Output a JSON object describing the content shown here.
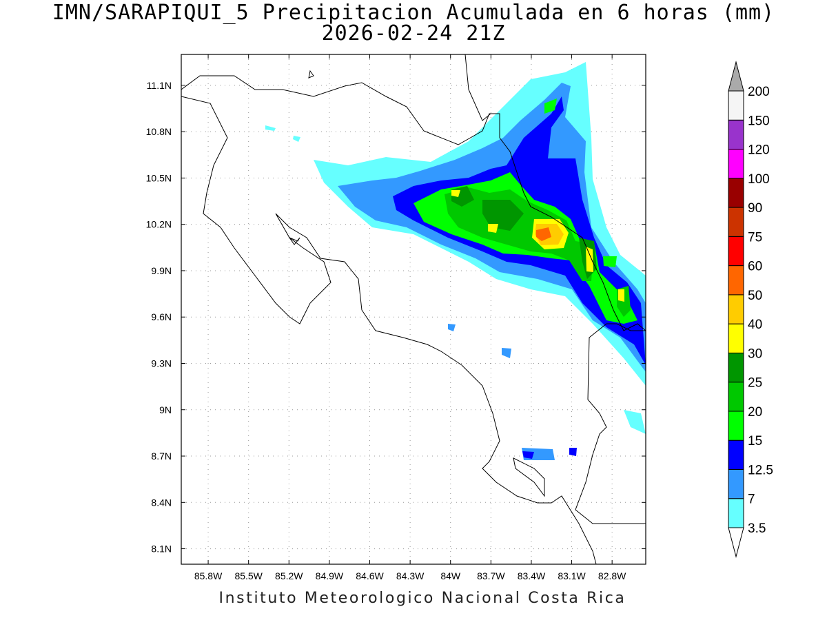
{
  "title": {
    "line1": "IMN/SARAPIQUI_5 Precipitacion Acumulada en 6 horas (mm)",
    "line2": "2026-02-24 21Z"
  },
  "footer": "Instituto Meteorologico Nacional Costa Rica",
  "map": {
    "lon_range": [
      -86.0,
      -82.55
    ],
    "lat_range": [
      8.0,
      11.3
    ],
    "lon_ticks": [
      "85.8W",
      "85.5W",
      "85.2W",
      "84.9W",
      "84.6W",
      "84.3W",
      "84W",
      "83.7W",
      "83.4W",
      "83.1W",
      "82.8W"
    ],
    "lat_ticks": [
      "8.1N",
      "8.4N",
      "8.7N",
      "9N",
      "9.3N",
      "9.6N",
      "9.9N",
      "10.2N",
      "10.5N",
      "10.8N",
      "11.1N"
    ],
    "grid": true
  },
  "legend": {
    "levels": [
      "3.5",
      "7",
      "12.5",
      "15",
      "20",
      "25",
      "30",
      "40",
      "50",
      "60",
      "75",
      "90",
      "100",
      "120",
      "150",
      "200"
    ],
    "colors": [
      "#ffffff",
      "#66ffff",
      "#3399ff",
      "#0000ff",
      "#00ff00",
      "#00c800",
      "#009600",
      "#ffff00",
      "#ffcc00",
      "#ff6600",
      "#ff0000",
      "#cc3300",
      "#990000",
      "#ff00ff",
      "#9933cc",
      "#f5f5f5",
      "#aaaaaa"
    ]
  }
}
